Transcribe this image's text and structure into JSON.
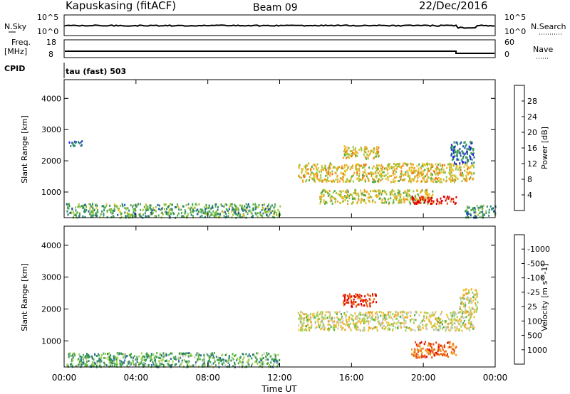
{
  "header": {
    "station": "Kapuskasing (fitACF)",
    "beam": "Beam 09",
    "date": "22/Dec/2016"
  },
  "status_panels": {
    "nsky": {
      "left_label": "N.Sky",
      "right_label": "N.Search",
      "left_ticks": [
        "10^5",
        "10^0"
      ],
      "right_ticks": [
        "10^5",
        "10^0"
      ]
    },
    "freq": {
      "left_label_line1": "Freq.",
      "left_label_line2": "[MHz]",
      "right_label": "Nave",
      "left_ticks": [
        "18",
        "8"
      ],
      "right_ticks": [
        "60",
        "0"
      ]
    },
    "cpid": {
      "left_label": "CPID",
      "text": "tau (fast) 503"
    }
  },
  "chart_data": [
    {
      "type": "heatmap",
      "name": "power",
      "ylabel": "Slant Range [km]",
      "ylim": [
        180,
        4600
      ],
      "yticks": [
        1000,
        2000,
        3000,
        4000
      ],
      "xlim": [
        0,
        24
      ],
      "colorbar": {
        "label": "Power [dB]",
        "ticks": [
          "4",
          "8",
          "12",
          "16",
          "20",
          "24",
          "28"
        ],
        "colors": [
          "#1a1ae6",
          "#1f4fa8",
          "#2c8a6e",
          "#4aa84a",
          "#9ac43a",
          "#e8c22a",
          "#f0a020",
          "#f07010",
          "#e84010",
          "#e00000"
        ]
      },
      "features": [
        {
          "kind": "band",
          "t_start": 0.1,
          "t_end": 12.0,
          "r_start": 200,
          "r_end": 650,
          "level": 0.35
        },
        {
          "kind": "band",
          "t_start": 13.0,
          "t_end": 22.8,
          "r_start": 1350,
          "r_end": 1950,
          "level": 0.55
        },
        {
          "kind": "band",
          "t_start": 14.2,
          "t_end": 20.5,
          "r_start": 650,
          "r_end": 1100,
          "level": 0.5
        },
        {
          "kind": "band",
          "t_start": 19.3,
          "t_end": 21.8,
          "r_start": 650,
          "r_end": 900,
          "level": 0.95
        },
        {
          "kind": "band",
          "t_start": 21.5,
          "t_end": 22.8,
          "r_start": 1900,
          "r_end": 2650,
          "level": 0.2
        },
        {
          "kind": "band",
          "t_start": 15.5,
          "t_end": 17.5,
          "r_start": 2100,
          "r_end": 2500,
          "level": 0.55
        },
        {
          "kind": "band",
          "t_start": 22.3,
          "t_end": 24.0,
          "r_start": 200,
          "r_end": 600,
          "level": 0.3
        },
        {
          "kind": "band",
          "t_start": 0.2,
          "t_end": 1.0,
          "r_start": 2500,
          "r_end": 2700,
          "level": 0.15
        }
      ]
    },
    {
      "type": "heatmap",
      "name": "velocity",
      "ylabel": "Slant Range [km]",
      "ylim": [
        180,
        4600
      ],
      "yticks": [
        1000,
        2000,
        3000,
        4000
      ],
      "xlim": [
        0,
        24
      ],
      "xticks": [
        "00:00",
        "04:00",
        "08:00",
        "12:00",
        "16:00",
        "20:00",
        "00:00"
      ],
      "xlabel": "Time UT",
      "colorbar": {
        "label": "Velocity [m s^-1]",
        "ticks": [
          "1000",
          "500",
          "100",
          "25",
          "-25",
          "-100",
          "-500",
          "-1000"
        ],
        "colors": [
          "#2a3cb0",
          "#2e6aa0",
          "#2f8a5a",
          "#4ab040",
          "#9ad050",
          "#c8c8c0",
          "#f0c030",
          "#f0a020",
          "#f07010",
          "#e84010",
          "#e00000"
        ]
      },
      "features": [
        {
          "kind": "band",
          "t_start": 0.1,
          "t_end": 12.0,
          "r_start": 200,
          "r_end": 650,
          "level": 0.3
        },
        {
          "kind": "band",
          "t_start": 13.0,
          "t_end": 22.8,
          "r_start": 1350,
          "r_end": 1950,
          "level": 0.5
        },
        {
          "kind": "band",
          "t_start": 19.3,
          "t_end": 21.8,
          "r_start": 500,
          "r_end": 1000,
          "level": 0.8
        },
        {
          "kind": "band",
          "t_start": 15.5,
          "t_end": 17.5,
          "r_start": 2100,
          "r_end": 2500,
          "level": 0.9
        },
        {
          "kind": "band",
          "t_start": 22.0,
          "t_end": 23.0,
          "r_start": 1900,
          "r_end": 2650,
          "level": 0.5
        }
      ]
    }
  ]
}
